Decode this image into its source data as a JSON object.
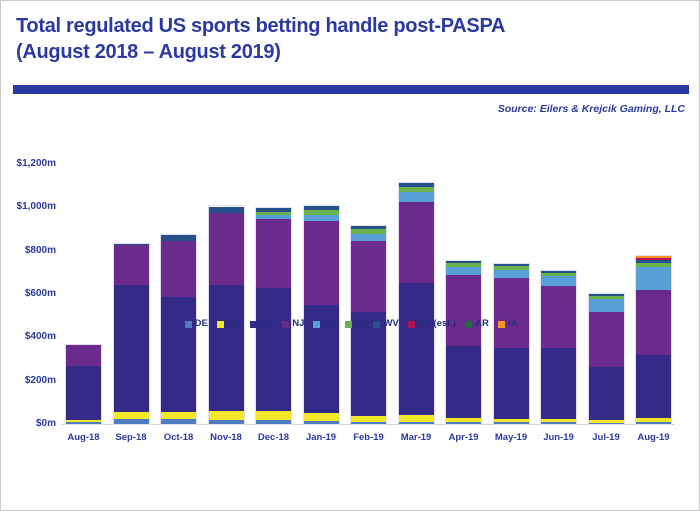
{
  "page": {
    "title_line1": "Total regulated US sports betting handle post-PASPA",
    "title_line2": "(August 2018 – August 2019)",
    "source": "Source: Eilers & Krejcik Gaming, LLC",
    "accent_color": "#2a3aa2"
  },
  "chart_data": {
    "type": "bar",
    "stacked": true,
    "title": "Total regulated US sports betting handle post-PASPA (August 2018 – August 2019)",
    "xlabel": "",
    "ylabel": "",
    "unit": "$m (millions of USD)",
    "ylim": [
      0,
      1200
    ],
    "ytick_interval": 200,
    "ytick_labels": [
      "$0m",
      "$200m",
      "$400m",
      "$600m",
      "$800m",
      "$1,000m",
      "$1,200m"
    ],
    "grid": false,
    "legend_position": "bottom",
    "categories": [
      "Aug-18",
      "Sep-18",
      "Oct-18",
      "Nov-18",
      "Dec-18",
      "Jan-19",
      "Feb-19",
      "Mar-19",
      "Apr-19",
      "May-19",
      "Jun-19",
      "Jul-19",
      "Aug-19"
    ],
    "series": [
      {
        "name": "DE",
        "color": "#4d7dbf",
        "values": [
          8,
          23,
          21,
          17,
          17,
          15,
          10,
          11,
          8,
          7,
          7,
          5,
          8
        ]
      },
      {
        "name": "MS",
        "color": "#f3e72a",
        "values": [
          10,
          32,
          33,
          44,
          42,
          35,
          25,
          32,
          19,
          17,
          15,
          13,
          20
        ]
      },
      {
        "name": "NV",
        "color": "#342a88",
        "values": [
          250,
          585,
          530,
          581,
          570,
          500,
          480,
          610,
          335,
          325,
          330,
          245,
          292
        ]
      },
      {
        "name": "NJ",
        "color": "#6b2b8d",
        "values": [
          96,
          184,
          261,
          331,
          319,
          385,
          330,
          372,
          325,
          325,
          285,
          255,
          298
        ]
      },
      {
        "name": "PA",
        "color": "#58a0d7",
        "values": [
          0,
          0,
          0,
          1,
          16,
          32,
          32,
          45,
          37,
          36,
          46,
          59,
          109
        ]
      },
      {
        "name": "RI",
        "color": "#69b24d",
        "values": [
          0,
          0,
          0,
          1,
          13,
          19,
          21,
          24,
          17,
          19,
          15,
          14,
          17
        ]
      },
      {
        "name": "WV",
        "color": "#27518a",
        "values": [
          0,
          7,
          26,
          29,
          21,
          22,
          17,
          20,
          10,
          10,
          9,
          8,
          11
        ]
      },
      {
        "name": "NY (est.)",
        "color": "#b11355",
        "values": [
          0,
          0,
          0,
          0,
          0,
          0,
          0,
          0,
          0,
          0,
          0,
          2,
          10
        ]
      },
      {
        "name": "AR",
        "color": "#1e6f3f",
        "values": [
          0,
          0,
          0,
          0,
          0,
          0,
          0,
          0,
          0,
          0,
          0,
          0,
          1
        ]
      },
      {
        "name": "IA",
        "color": "#f6921e",
        "values": [
          0,
          0,
          0,
          0,
          0,
          0,
          0,
          0,
          0,
          0,
          0,
          0,
          8
        ]
      }
    ],
    "totals_estimate": [
      364,
      831,
      871,
      1004,
      998,
      1008,
      915,
      1114,
      751,
      739,
      707,
      601,
      774
    ]
  }
}
